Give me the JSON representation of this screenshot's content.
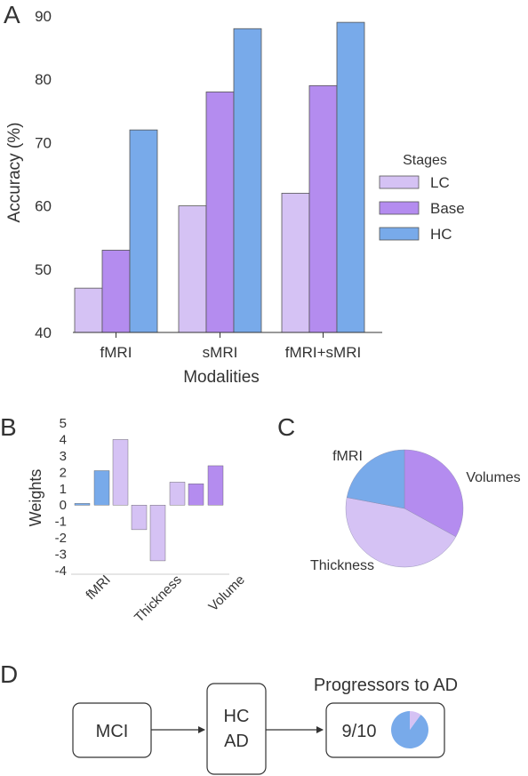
{
  "panels": {
    "A": "A",
    "B": "B",
    "C": "C",
    "D": "D"
  },
  "colors": {
    "LC": "#d5c2f4",
    "Base": "#b48cef",
    "HC": "#78aaea",
    "stroke": "#555555",
    "axis": "#333333"
  },
  "chart_data": [
    {
      "type": "bar",
      "panel": "A",
      "categories": [
        "fMRI",
        "sMRI",
        "fMRI+sMRI"
      ],
      "series": [
        {
          "name": "LC",
          "values": [
            47,
            60,
            62
          ]
        },
        {
          "name": "Base",
          "values": [
            53,
            78,
            79
          ]
        },
        {
          "name": "HC",
          "values": [
            72,
            88,
            89
          ]
        }
      ],
      "xlabel": "Modalities",
      "ylabel": "Accuracy (%)",
      "ylim": [
        40,
        90
      ],
      "yticks": [
        40,
        50,
        60,
        70,
        80,
        90
      ],
      "legend": {
        "title": "Stages",
        "position": "right",
        "entries": [
          "LC",
          "Base",
          "HC"
        ]
      },
      "grid": false
    },
    {
      "type": "bar",
      "panel": "B",
      "values": [
        0.1,
        2.1,
        4.0,
        -1.5,
        -3.4,
        1.4,
        1.3,
        2.4
      ],
      "bar_colors": [
        "HC",
        "HC",
        "LC",
        "LC",
        "LC",
        "LC",
        "Base",
        "Base"
      ],
      "tick_labels": [
        "fMRI",
        "Thickness",
        "Volume"
      ],
      "ylabel": "Weights",
      "ylim": [
        -4,
        5
      ],
      "yticks": [
        5,
        4,
        3,
        2,
        1,
        0,
        -1,
        -2,
        -3,
        -4
      ],
      "grid": false
    },
    {
      "type": "pie",
      "panel": "C",
      "slices": [
        {
          "label": "Volumes",
          "value": 33,
          "color": "Base"
        },
        {
          "label": "Thickness",
          "value": 45,
          "color": "LC"
        },
        {
          "label": "fMRI",
          "value": 22,
          "color": "HC"
        }
      ]
    }
  ],
  "diagram": {
    "box1": "MCI",
    "box2_line1": "HC",
    "box2_line2": "AD",
    "title": "Progressors to AD",
    "result": "9/10",
    "mini_pie": [
      {
        "value": 0.9,
        "color": "HC"
      },
      {
        "value": 0.1,
        "color": "LC"
      }
    ]
  }
}
